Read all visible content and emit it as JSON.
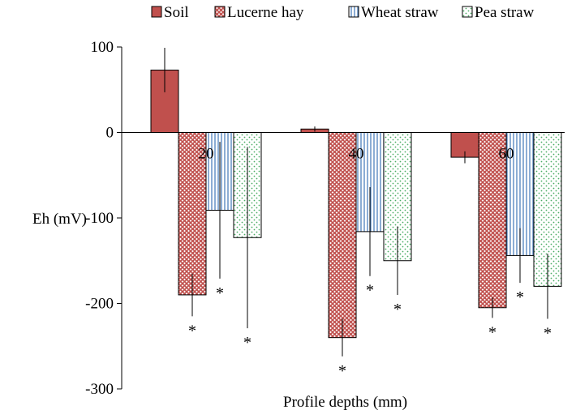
{
  "chart_data": {
    "type": "bar",
    "title": "",
    "xlabel": "Profile depths (mm)",
    "ylabel": "Eh (mV)",
    "ylim": [
      -300,
      100
    ],
    "yticks": [
      "100",
      "0",
      "-100",
      "-200",
      "-300"
    ],
    "ytick_values": [
      100,
      0,
      -100,
      -200,
      -300
    ],
    "categories": [
      "20",
      "40",
      "60"
    ],
    "legend_position": "top",
    "series": [
      {
        "name": "Soil",
        "color": "#c0504d",
        "pattern": "solid",
        "values": [
          73,
          4,
          -29
        ],
        "errors": [
          26,
          3,
          7
        ],
        "significance": [
          "",
          "",
          ""
        ]
      },
      {
        "name": "Lucerne hay",
        "color": "#c0504d",
        "pattern": "crosshatch",
        "values": [
          -190,
          -240,
          -205
        ],
        "errors": [
          25,
          22,
          12
        ],
        "significance": [
          "*",
          "*",
          "*"
        ]
      },
      {
        "name": "Wheat straw",
        "color": "#4f81bd",
        "pattern": "vertical-lines",
        "values": [
          -91,
          -116,
          -144
        ],
        "errors": [
          80,
          52,
          32
        ],
        "significance": [
          "*",
          "*",
          "*"
        ]
      },
      {
        "name": "Pea straw",
        "color": "#4bac64",
        "pattern": "dots",
        "values": [
          -123,
          -150,
          -180
        ],
        "errors": [
          106,
          40,
          38
        ],
        "significance": [
          "*",
          "*",
          "*"
        ]
      }
    ]
  }
}
